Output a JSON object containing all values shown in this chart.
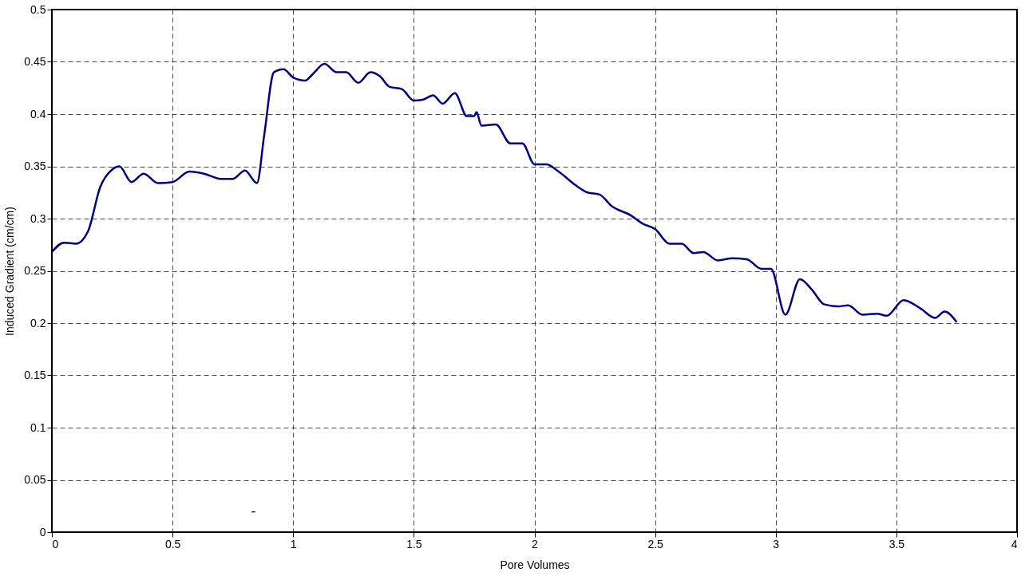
{
  "chart_data": {
    "type": "line",
    "xlabel": "Pore Volumes",
    "ylabel": "Induced Gradient (cm/cm)",
    "xlim": [
      0,
      4
    ],
    "xticks": [
      0,
      0.5,
      1,
      1.5,
      2,
      2.5,
      3,
      3.5,
      4
    ],
    "ylim": [
      0,
      0.5
    ],
    "yticks": [
      0,
      0.05,
      0.1,
      0.15,
      0.2,
      0.25,
      0.3,
      0.35,
      0.4,
      0.45,
      0.5
    ],
    "grid": true,
    "legend": false,
    "marker": "none",
    "line_style": "solid",
    "annotations": [
      "-"
    ],
    "x": [
      0,
      0.05,
      0.1,
      0.15,
      0.2,
      0.25,
      0.28,
      0.33,
      0.38,
      0.44,
      0.5,
      0.57,
      0.63,
      0.7,
      0.75,
      0.8,
      0.85,
      0.88,
      0.92,
      0.96,
      1.0,
      1.05,
      1.08,
      1.13,
      1.18,
      1.22,
      1.27,
      1.32,
      1.36,
      1.4,
      1.45,
      1.5,
      1.54,
      1.58,
      1.62,
      1.67,
      1.72,
      1.75,
      1.76,
      1.78,
      1.84,
      1.9,
      1.95,
      2.0,
      2.05,
      2.1,
      2.17,
      2.22,
      2.27,
      2.32,
      2.4,
      2.45,
      2.5,
      2.56,
      2.61,
      2.66,
      2.7,
      2.76,
      2.82,
      2.88,
      2.94,
      2.98,
      3.04,
      3.1,
      3.15,
      3.2,
      3.26,
      3.3,
      3.36,
      3.42,
      3.46,
      3.53,
      3.6,
      3.66,
      3.7,
      3.75
    ],
    "series": [
      {
        "color": "#000080",
        "values": [
          0.268,
          0.277,
          0.276,
          0.288,
          0.33,
          0.347,
          0.35,
          0.335,
          0.343,
          0.334,
          0.335,
          0.345,
          0.343,
          0.338,
          0.338,
          0.346,
          0.334,
          0.38,
          0.44,
          0.443,
          0.435,
          0.432,
          0.438,
          0.448,
          0.44,
          0.44,
          0.43,
          0.44,
          0.436,
          0.426,
          0.424,
          0.413,
          0.414,
          0.418,
          0.41,
          0.42,
          0.398,
          0.398,
          0.402,
          0.389,
          0.39,
          0.372,
          0.372,
          0.352,
          0.352,
          0.345,
          0.332,
          0.325,
          0.323,
          0.312,
          0.303,
          0.295,
          0.29,
          0.276,
          0.276,
          0.267,
          0.268,
          0.26,
          0.262,
          0.261,
          0.252,
          0.252,
          0.208,
          0.242,
          0.232,
          0.218,
          0.216,
          0.217,
          0.208,
          0.209,
          0.207,
          0.222,
          0.214,
          0.205,
          0.211,
          0.201
        ]
      }
    ]
  }
}
